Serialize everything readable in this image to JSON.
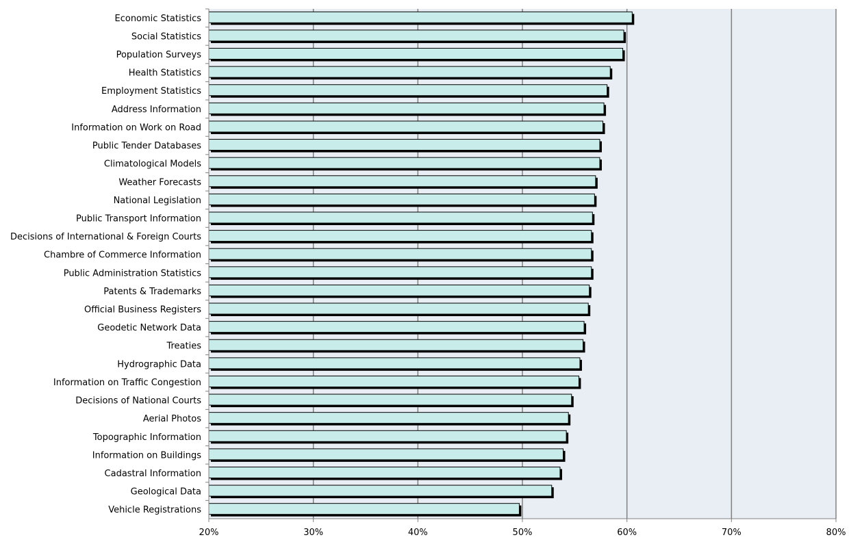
{
  "chart_data": {
    "type": "bar",
    "orientation": "horizontal",
    "title": "",
    "xlabel": "",
    "ylabel": "",
    "xlim": [
      0.2,
      0.8
    ],
    "x_ticks": [
      "20%",
      "30%",
      "40%",
      "50%",
      "60%",
      "70%",
      "80%"
    ],
    "grid": "vertical",
    "legend": "none",
    "categories": [
      "Economic Statistics",
      "Social Statistics",
      "Population Surveys",
      "Health Statistics",
      "Employment Statistics",
      "Address Information",
      "Information on Work on Road",
      "Public Tender Databases",
      "Climatological Models",
      "Weather Forecasts",
      "National Legislation",
      "Public Transport Information",
      "Decisions of International & Foreign Courts",
      "Chambre of Commerce Information",
      "Public Administration Statistics",
      "Patents & Trademarks",
      "Official Business Registers",
      "Geodetic Network Data",
      "Treaties",
      "Hydrographic Data",
      "Information on Traffic Congestion",
      "Decisions of National Courts",
      "Aerial Photos",
      "Topographic Information",
      "Information on Buildings",
      "Cadastral Information",
      "Geological Data",
      "Vehicle Registrations"
    ],
    "values": [
      0.605,
      0.597,
      0.596,
      0.584,
      0.581,
      0.578,
      0.577,
      0.574,
      0.574,
      0.57,
      0.569,
      0.567,
      0.566,
      0.566,
      0.566,
      0.564,
      0.563,
      0.559,
      0.558,
      0.555,
      0.554,
      0.547,
      0.544,
      0.542,
      0.539,
      0.536,
      0.528,
      0.497
    ],
    "colors": {
      "bar_fill": "#c8ecea",
      "bar_stroke": "#000000",
      "bar_shadow": "#000000",
      "plot_background": "#e8eef4",
      "gridline": "#808080",
      "axis": "#808080"
    }
  }
}
